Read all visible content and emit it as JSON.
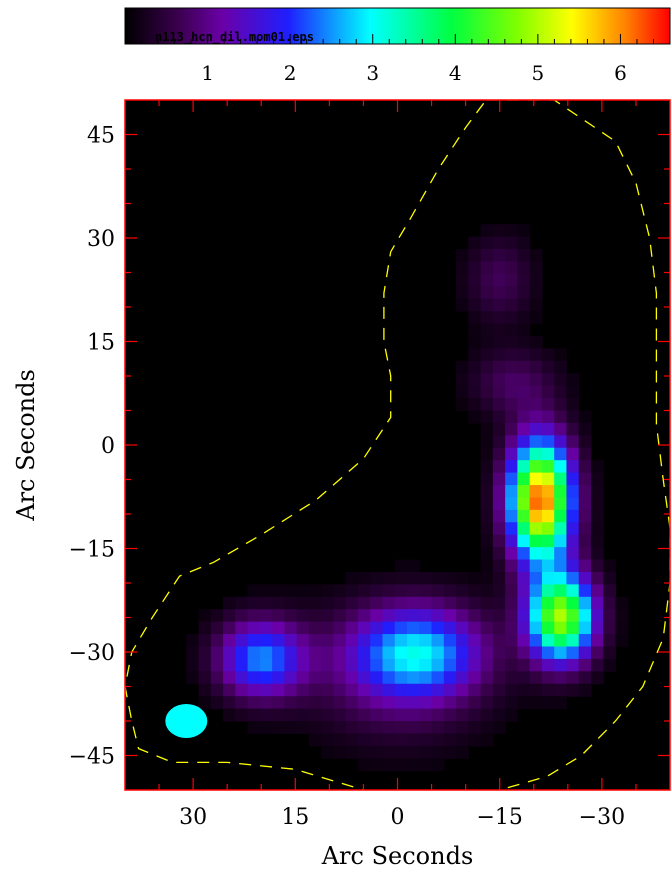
{
  "chart_data": {
    "type": "heatmap",
    "filename": "n113_hcn_dil.mom01.eps",
    "xlabel": "Arc Seconds",
    "ylabel": "Arc Seconds",
    "xlim": [
      40,
      -40
    ],
    "ylim": [
      -50,
      50
    ],
    "xticks": [
      30,
      15,
      0,
      -15,
      -30
    ],
    "yticks": [
      45,
      30,
      15,
      0,
      -15,
      -30,
      -45
    ],
    "xtick_labels": [
      "30",
      "15",
      "0",
      "−15",
      "−30"
    ],
    "ytick_labels": [
      "45",
      "30",
      "15",
      "0",
      "−15",
      "−30",
      "−45"
    ],
    "colorbar": {
      "range": [
        0,
        6.6
      ],
      "ticks": [
        1,
        2,
        3,
        4,
        5,
        6
      ],
      "tick_labels": [
        "1",
        "2",
        "3",
        "4",
        "5",
        "6"
      ],
      "colormap": "rainbow"
    },
    "sources": [
      {
        "x": -21,
        "y": -8,
        "peak": 6.3,
        "sx": 3.2,
        "sy": 6.0
      },
      {
        "x": -24,
        "y": -25,
        "peak": 4.9,
        "sx": 3.4,
        "sy": 4.5
      },
      {
        "x": 20,
        "y": -31,
        "peak": 2.4,
        "sx": 4.5,
        "sy": 4.0
      },
      {
        "x": -3,
        "y": -30,
        "peak": 2.3,
        "sx": 6.5,
        "sy": 4.5
      },
      {
        "x": 0,
        "y": -33,
        "peak": 0.9,
        "sx": 9.0,
        "sy": 7.0
      },
      {
        "x": -17,
        "y": 9,
        "peak": 0.75,
        "sx": 4.5,
        "sy": 3.5
      },
      {
        "x": -15,
        "y": 24,
        "peak": 0.7,
        "sx": 3.5,
        "sy": 4.5
      }
    ],
    "contour": [
      [
        -13,
        50
      ],
      [
        -23,
        50
      ],
      [
        -32,
        44
      ],
      [
        -35,
        38
      ],
      [
        -37,
        30
      ],
      [
        -38,
        22
      ],
      [
        -38,
        12
      ],
      [
        -38,
        3
      ],
      [
        -39,
        -5
      ],
      [
        -40,
        -12
      ],
      [
        -40,
        -20
      ],
      [
        -39,
        -28
      ],
      [
        -36,
        -35
      ],
      [
        -32,
        -40
      ],
      [
        -27,
        -45
      ],
      [
        -22,
        -48
      ],
      [
        -15,
        -50
      ],
      [
        -5,
        -51
      ],
      [
        5,
        -50
      ],
      [
        15,
        -47
      ],
      [
        25,
        -46
      ],
      [
        33,
        -46
      ],
      [
        38,
        -44
      ],
      [
        39,
        -40
      ],
      [
        40,
        -35
      ],
      [
        39,
        -30
      ],
      [
        36,
        -25
      ],
      [
        32,
        -19
      ],
      [
        27,
        -17
      ],
      [
        20,
        -13
      ],
      [
        12,
        -8
      ],
      [
        5,
        -2
      ],
      [
        1,
        4
      ],
      [
        1,
        10
      ],
      [
        2,
        15
      ],
      [
        2,
        22
      ],
      [
        1,
        28
      ],
      [
        -2,
        33
      ],
      [
        -6,
        40
      ],
      [
        -10,
        46
      ]
    ],
    "beam": {
      "x": 31,
      "y": -40,
      "color": "#00ffff"
    }
  },
  "colors": {
    "background": "#000000",
    "frame": "#ff0000",
    "contour": "#ffff00",
    "beam": "#00ffff"
  }
}
